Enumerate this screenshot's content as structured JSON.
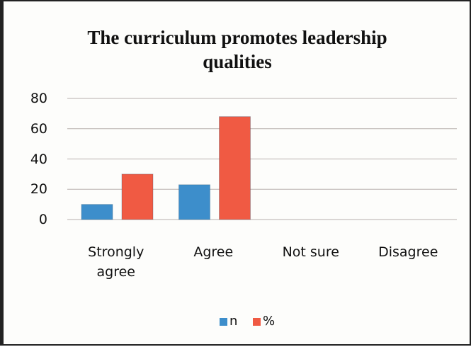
{
  "chart_data": {
    "type": "bar",
    "title": "The curriculum promotes leadership qualities",
    "categories": [
      "Strongly agree",
      "Agree",
      "Not sure",
      "Disagree"
    ],
    "series": [
      {
        "name": "n",
        "color": "#3d8ecb",
        "values": [
          10,
          23,
          0,
          0
        ]
      },
      {
        "name": "%",
        "color": "#f05a43",
        "values": [
          30,
          68,
          0,
          0
        ]
      }
    ],
    "ylim": [
      0,
      80
    ],
    "yticks": [
      0,
      20,
      40,
      60,
      80
    ],
    "grid": true,
    "legend": "bottom"
  }
}
